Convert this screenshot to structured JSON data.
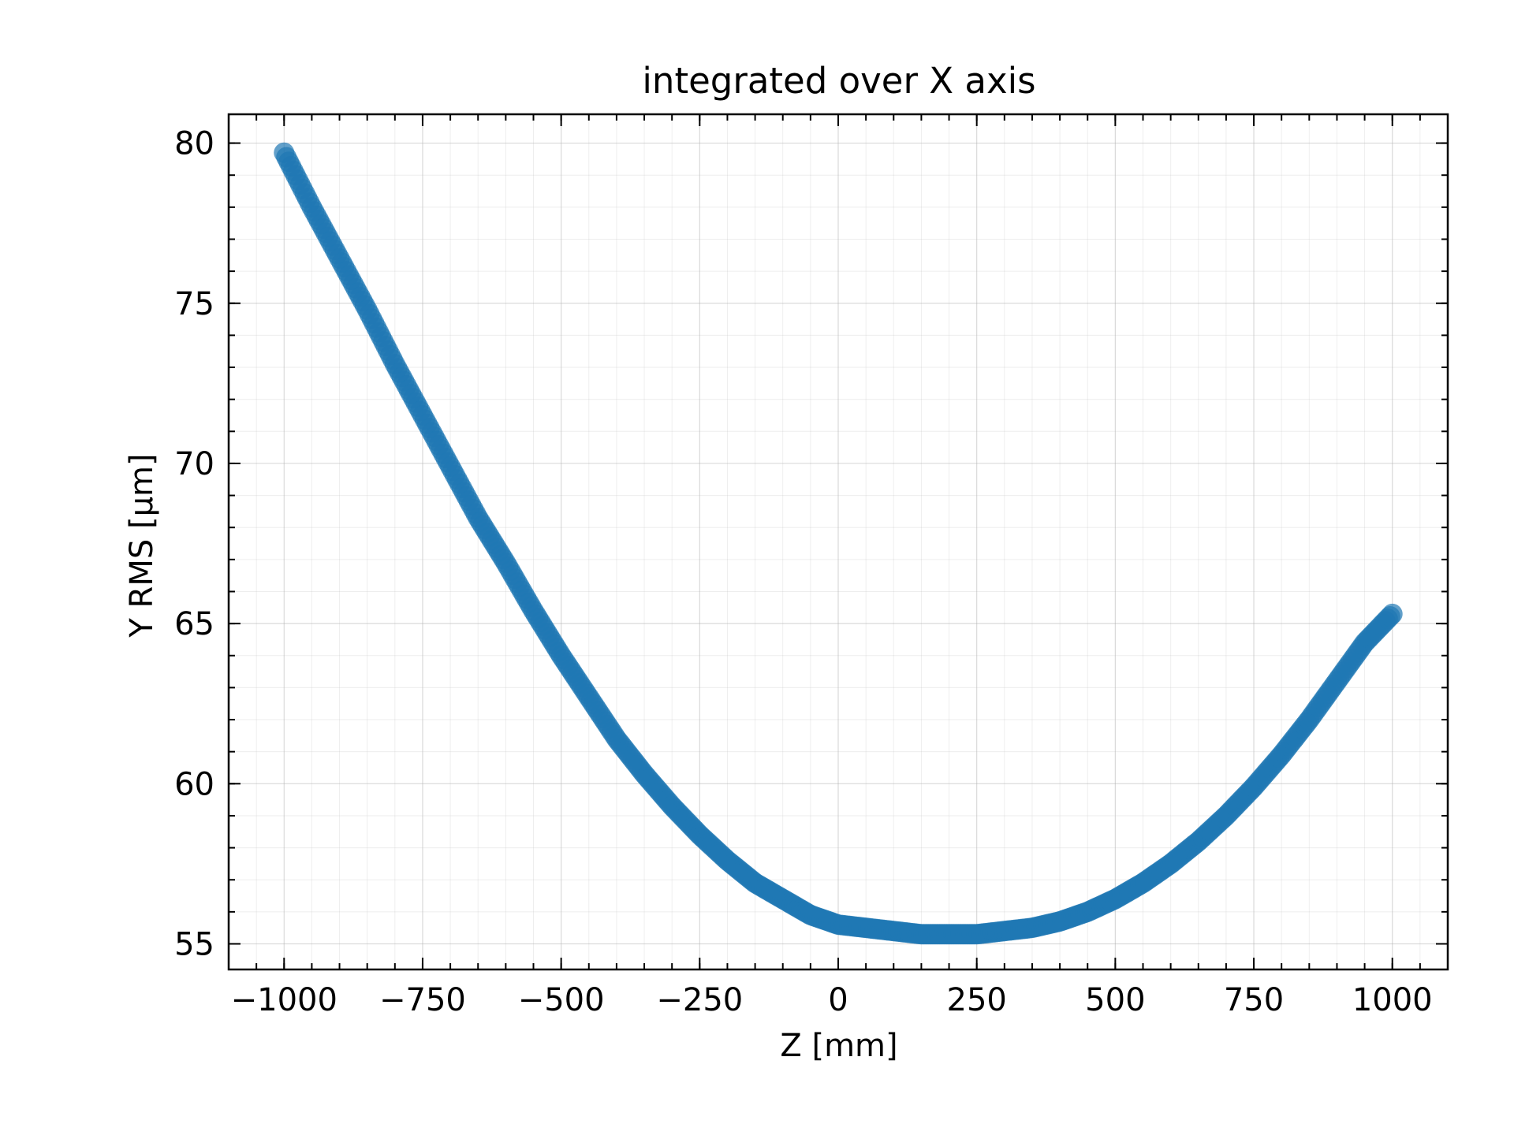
{
  "chart_data": {
    "type": "scatter",
    "title": "integrated over X axis",
    "xlabel": "Z [mm]",
    "ylabel": "Y RMS [µm]",
    "xlim": [
      -1100,
      1100
    ],
    "ylim": [
      54.2,
      80.9
    ],
    "xticks": [
      -1000,
      -750,
      -500,
      -250,
      0,
      250,
      500,
      750,
      1000
    ],
    "xtick_labels": [
      "−1000",
      "−750",
      "−500",
      "−250",
      "0",
      "250",
      "500",
      "750",
      "1000"
    ],
    "yticks": [
      55,
      60,
      65,
      70,
      75,
      80
    ],
    "ytick_labels": [
      "55",
      "60",
      "65",
      "70",
      "75",
      "80"
    ],
    "grid": true,
    "tick_direction": "in",
    "series": [
      {
        "color": "#1f77b4",
        "marker": "circle",
        "alpha": 0.7,
        "x": [
          -1000,
          -950,
          -900,
          -850,
          -800,
          -750,
          -700,
          -650,
          -600,
          -550,
          -500,
          -450,
          -400,
          -350,
          -300,
          -250,
          -200,
          -150,
          -100,
          -50,
          0,
          50,
          100,
          150,
          200,
          250,
          300,
          350,
          400,
          450,
          500,
          550,
          600,
          650,
          700,
          750,
          800,
          850,
          900,
          950,
          1000
        ],
        "y": [
          79.7,
          78.0,
          76.4,
          74.8,
          73.1,
          71.5,
          69.9,
          68.3,
          66.9,
          65.4,
          64.0,
          62.7,
          61.4,
          60.3,
          59.3,
          58.4,
          57.6,
          56.9,
          56.4,
          55.9,
          55.6,
          55.5,
          55.4,
          55.3,
          55.3,
          55.3,
          55.4,
          55.5,
          55.7,
          56.0,
          56.4,
          56.9,
          57.5,
          58.2,
          59.0,
          59.9,
          60.9,
          62.0,
          63.2,
          64.4,
          65.3
        ]
      }
    ]
  }
}
